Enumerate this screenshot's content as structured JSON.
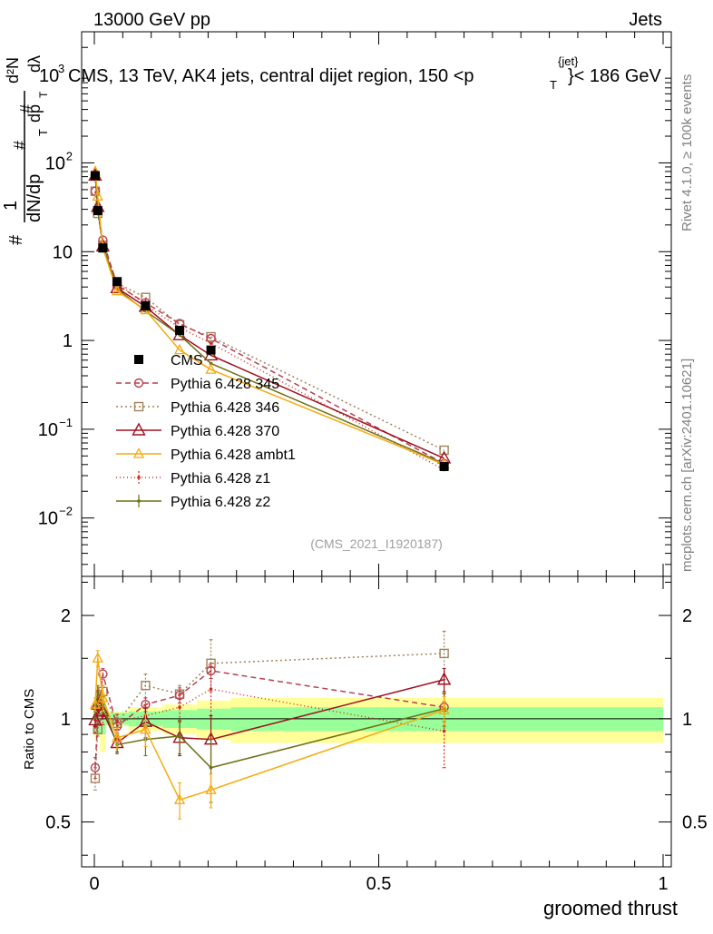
{
  "header": {
    "energy_label": "13000 GeV pp",
    "category_label": "Jets",
    "title_prefix": "CMS, 13 TeV, AK4 jets, central dijet region, 150 <p",
    "title_sub": "T",
    "title_sup": "{jet}",
    "title_suffix": "}< 186 GeV",
    "ytitle_overlap": "10",
    "ytitle_overlap_exp": "3"
  },
  "side": {
    "rivet": "Rivet 4.1.0, ≥ 100k events",
    "mcplots": "mcplots.cern.ch [arXiv:2401.10621]"
  },
  "watermark": "(CMS_2021_I1920187)",
  "colors": {
    "cms": "#000000",
    "p345": "#b5404f",
    "p346": "#a0825a",
    "p370": "#a01020",
    "ambt1": "#f5aa10",
    "z1": "#d22a1e",
    "z2": "#6f7016",
    "band_inner": "#99ff99",
    "band_outer": "#ffff99"
  },
  "chart_data": [
    {
      "type": "line",
      "panel": "main",
      "yscale": "log",
      "xlim": [
        -0.02,
        1.0
      ],
      "ylim": [
        0.0022,
        3000
      ],
      "ylabel_parts": [
        "1",
        "dN/dp",
        "T",
        "d²N",
        "dp",
        "T",
        "dλ"
      ],
      "yticks": [
        {
          "value": 0.01,
          "base": "10",
          "exp": "−2"
        },
        {
          "value": 0.1,
          "base": "10",
          "exp": "−1"
        },
        {
          "value": 1,
          "base": "1",
          "exp": ""
        },
        {
          "value": 10,
          "base": "10",
          "exp": ""
        },
        {
          "value": 100,
          "base": "10",
          "exp": "2"
        }
      ],
      "x": [
        0.0015,
        0.006,
        0.015,
        0.04,
        0.09,
        0.15,
        0.205,
        0.615
      ],
      "series": [
        {
          "name": "CMS",
          "key": "cms",
          "marker": "square-filled",
          "values": [
            72,
            29,
            11,
            4.6,
            2.45,
            1.3,
            0.78,
            0.038
          ]
        },
        {
          "name": "Pythia 6.428 345",
          "key": "p345",
          "marker": "circle-open",
          "dash": "6,4",
          "values": [
            48,
            30,
            13.5,
            4.2,
            2.65,
            1.55,
            1.05,
            0.041
          ]
        },
        {
          "name": "Pythia 6.428 346",
          "key": "p346",
          "marker": "square-open",
          "dash": "2,3",
          "values": [
            48,
            27,
            11.8,
            4.4,
            3.05,
            1.5,
            1.1,
            0.058
          ]
        },
        {
          "name": "Pythia 6.428 370",
          "key": "p370",
          "marker": "triangle-open",
          "dash": "",
          "values": [
            72,
            32,
            11.5,
            3.9,
            2.4,
            1.15,
            0.68,
            0.047
          ]
        },
        {
          "name": "Pythia 6.428 ambt1",
          "key": "ambt1",
          "marker": "triangle-open-small",
          "dash": "",
          "values": [
            80,
            42,
            11,
            3.6,
            2.2,
            0.78,
            0.47,
            0.04
          ]
        },
        {
          "name": "Pythia 6.428 z1",
          "key": "z1",
          "marker": "dot",
          "dash": "1,3",
          "values": [
            68,
            33,
            11.2,
            4.5,
            2.5,
            1.4,
            0.93,
            0.035
          ]
        },
        {
          "name": "Pythia 6.428 z2",
          "key": "z2",
          "marker": "dot",
          "dash": "",
          "values": [
            78,
            30,
            12,
            3.8,
            2.15,
            1.15,
            0.55,
            0.041
          ]
        }
      ]
    },
    {
      "type": "line",
      "panel": "ratio",
      "yscale": "log",
      "ylabel": "Ratio to CMS",
      "xlabel": "groomed thrust",
      "xlim": [
        -0.02,
        1.0
      ],
      "ylim": [
        0.37,
        2.6
      ],
      "yticks": [
        {
          "value": 0.5,
          "label": "0.5"
        },
        {
          "value": 1,
          "label": "1"
        },
        {
          "value": 2,
          "label": "2"
        }
      ],
      "xticks": [
        {
          "value": 0,
          "label": "0"
        },
        {
          "value": 0.5,
          "label": "0.5"
        },
        {
          "value": 1,
          "label": "1"
        }
      ],
      "x": [
        0.0015,
        0.006,
        0.015,
        0.04,
        0.09,
        0.15,
        0.205,
        0.615
      ],
      "bands": {
        "edges": [
          0.0,
          0.003,
          0.01,
          0.02,
          0.06,
          0.12,
          0.18,
          0.24,
          1.0
        ],
        "inner": [
          0.1,
          0.1,
          0.1,
          0.04,
          0.05,
          0.06,
          0.07,
          0.08
        ],
        "outer": [
          0.12,
          0.12,
          0.2,
          0.05,
          0.08,
          0.1,
          0.13,
          0.15
        ]
      },
      "series": [
        {
          "key": "p345",
          "marker": "circle-open",
          "dash": "6,4",
          "values": [
            0.72,
            1.01,
            1.35,
            0.95,
            1.1,
            1.17,
            1.38,
            1.08
          ],
          "err": [
            0.05,
            0.04,
            0.05,
            0.04,
            0.05,
            0.06,
            0.07,
            0.1
          ]
        },
        {
          "key": "p346",
          "marker": "square-open",
          "dash": "2,3",
          "values": [
            0.67,
            0.93,
            1.2,
            0.97,
            1.25,
            1.18,
            1.45,
            1.55
          ],
          "err": [
            0.05,
            0.04,
            0.05,
            0.04,
            0.1,
            0.07,
            0.25,
            0.25
          ]
        },
        {
          "key": "p370",
          "marker": "triangle-open",
          "dash": "",
          "values": [
            0.99,
            1.1,
            1.05,
            0.85,
            0.98,
            0.88,
            0.87,
            1.3
          ],
          "err": [
            0.04,
            0.05,
            0.05,
            0.05,
            0.1,
            0.1,
            0.15,
            0.1
          ]
        },
        {
          "key": "ambt1",
          "marker": "triangle-open-small",
          "dash": "",
          "values": [
            1.1,
            1.5,
            1.15,
            0.88,
            0.93,
            0.58,
            0.62,
            1.06
          ],
          "err": [
            0.05,
            0.08,
            0.1,
            0.06,
            0.1,
            0.07,
            0.07,
            0.1
          ]
        },
        {
          "key": "z1",
          "marker": "dot",
          "dash": "1,3",
          "values": [
            0.95,
            1.15,
            1.02,
            0.98,
            1.02,
            1.08,
            1.22,
            0.92
          ],
          "err": [
            0.04,
            0.06,
            0.06,
            0.05,
            0.08,
            0.1,
            0.2,
            0.2
          ]
        },
        {
          "key": "z2",
          "marker": "dot",
          "dash": "",
          "values": [
            1.05,
            1.2,
            1.1,
            0.84,
            0.87,
            0.89,
            0.72,
            1.07
          ],
          "err": [
            0.05,
            0.05,
            0.06,
            0.05,
            0.09,
            0.1,
            0.15,
            0.12
          ]
        }
      ]
    }
  ]
}
